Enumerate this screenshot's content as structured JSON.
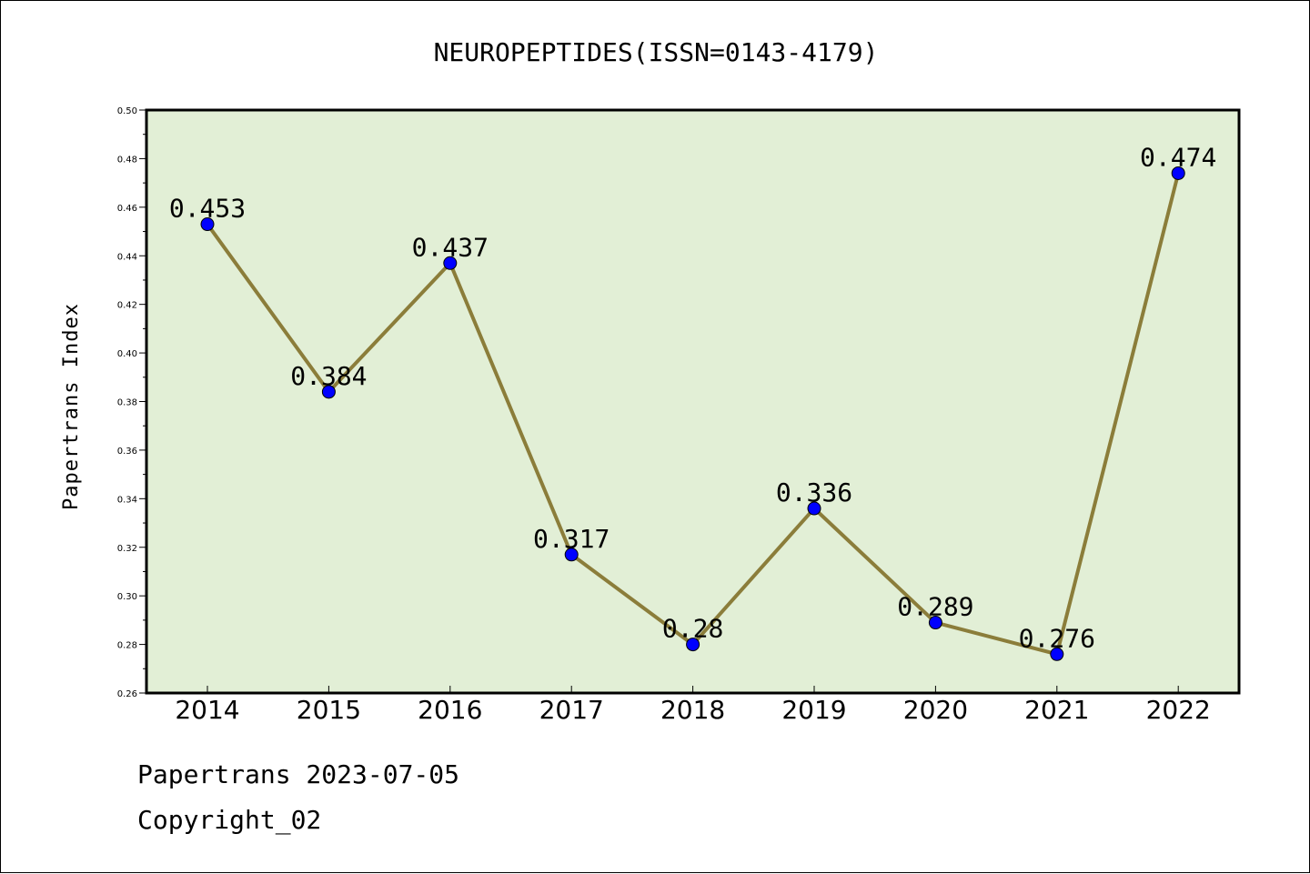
{
  "chart_data": {
    "type": "line",
    "title": "NEUROPEPTIDES(ISSN=0143-4179)",
    "xlabel": "",
    "ylabel": "Papertrans Index",
    "categories": [
      "2014",
      "2015",
      "2016",
      "2017",
      "2018",
      "2019",
      "2020",
      "2021",
      "2022"
    ],
    "series": [
      {
        "values": [
          0.453,
          0.384,
          0.437,
          0.317,
          0.28,
          0.336,
          0.289,
          0.276,
          0.474
        ],
        "labels": [
          "0.453",
          "0.384",
          "0.437",
          "0.317",
          "0.28",
          "0.336",
          "0.289",
          "0.276",
          "0.474"
        ]
      }
    ],
    "ylim": [
      0.26,
      0.5
    ],
    "yticks": [
      "0.26",
      "0.28",
      "0.30",
      "0.32",
      "0.34",
      "0.36",
      "0.38",
      "0.40",
      "0.42",
      "0.44",
      "0.46",
      "0.48",
      "0.50"
    ],
    "grid": false,
    "colors": {
      "plot_background": "#e2efd6",
      "line": "#8b7d3a",
      "marker": "#0000ff"
    }
  },
  "footer": {
    "line1": "Papertrans 2023-07-05",
    "line2": "Copyright_02"
  }
}
